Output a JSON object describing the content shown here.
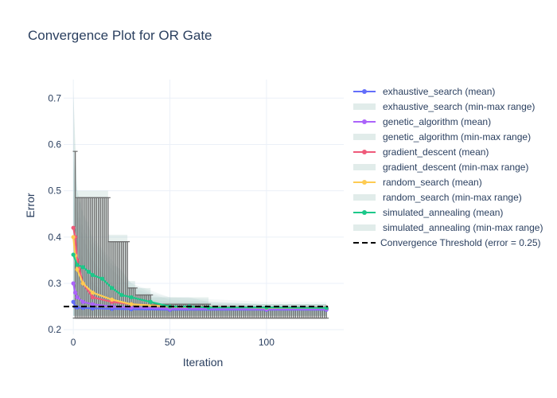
{
  "chart_data": {
    "type": "line",
    "title": "Convergence Plot for OR Gate",
    "xlabel": "Iteration",
    "ylabel": "Error",
    "xlim": [
      -5,
      140
    ],
    "ylim": [
      0.19,
      0.74
    ],
    "x_ticks": [
      0,
      50,
      100
    ],
    "y_ticks": [
      0.2,
      0.3,
      0.4,
      0.5,
      0.6,
      0.7
    ],
    "x_tick_labels": [
      "0",
      "50",
      "100"
    ],
    "y_tick_labels": [
      "0.2",
      "0.3",
      "0.4",
      "0.5",
      "0.6",
      "0.7"
    ],
    "grid": true,
    "legend_position": "right",
    "threshold": {
      "name": "Convergence Threshold (error = 0.25)",
      "value": 0.25,
      "color": "#000000",
      "dash": "dashed"
    },
    "band_color": "rgba(120,170,160,0.18)",
    "errorbar_color": "#6e6e6e",
    "series": [
      {
        "name": "exhaustive_search (mean)",
        "band_name": "exhaustive_search (min-max range)",
        "color": "#636efa",
        "x": [
          0,
          1,
          2,
          5,
          10,
          20,
          30,
          50,
          100,
          131
        ],
        "mean": [
          0.26,
          0.25,
          0.248,
          0.247,
          0.246,
          0.245,
          0.244,
          0.243,
          0.243,
          0.243
        ],
        "min": [
          0.23,
          0.23,
          0.23,
          0.23,
          0.23,
          0.23,
          0.23,
          0.23,
          0.23,
          0.23
        ],
        "max": [
          0.5,
          0.45,
          0.4,
          0.35,
          0.3,
          0.27,
          0.26,
          0.255,
          0.25,
          0.25
        ]
      },
      {
        "name": "genetic_algorithm (mean)",
        "band_name": "genetic_algorithm (min-max range)",
        "color": "#ab63fa",
        "x": [
          0,
          1,
          2,
          5,
          10,
          20,
          30,
          50,
          100,
          131
        ],
        "mean": [
          0.3,
          0.28,
          0.27,
          0.26,
          0.255,
          0.25,
          0.248,
          0.245,
          0.244,
          0.244
        ],
        "min": [
          0.23,
          0.23,
          0.23,
          0.23,
          0.23,
          0.23,
          0.23,
          0.23,
          0.23,
          0.23
        ],
        "max": [
          0.55,
          0.5,
          0.45,
          0.4,
          0.35,
          0.3,
          0.27,
          0.26,
          0.255,
          0.255
        ]
      },
      {
        "name": "gradient_descent (mean)",
        "band_name": "gradient_descent (min-max range)",
        "color": "#ef5a7a",
        "x": [
          0,
          1,
          2,
          5,
          10,
          20,
          30,
          50,
          100,
          131
        ],
        "mean": [
          0.42,
          0.4,
          0.35,
          0.3,
          0.27,
          0.26,
          0.255,
          0.25,
          0.248,
          0.248
        ],
        "min": [
          0.23,
          0.23,
          0.23,
          0.23,
          0.23,
          0.23,
          0.23,
          0.23,
          0.23,
          0.23
        ],
        "max": [
          0.72,
          0.6,
          0.5,
          0.45,
          0.4,
          0.35,
          0.3,
          0.27,
          0.26,
          0.26
        ]
      },
      {
        "name": "random_search (mean)",
        "band_name": "random_search (min-max range)",
        "color": "#fecb52",
        "x": [
          0,
          1,
          2,
          5,
          10,
          20,
          30,
          50,
          100,
          131
        ],
        "mean": [
          0.4,
          0.36,
          0.33,
          0.3,
          0.28,
          0.265,
          0.255,
          0.25,
          0.247,
          0.247
        ],
        "min": [
          0.23,
          0.23,
          0.23,
          0.23,
          0.23,
          0.23,
          0.23,
          0.23,
          0.23,
          0.23
        ],
        "max": [
          0.6,
          0.52,
          0.46,
          0.42,
          0.38,
          0.33,
          0.29,
          0.265,
          0.255,
          0.255
        ]
      },
      {
        "name": "simulated_annealing (mean)",
        "band_name": "simulated_annealing (min-max range)",
        "color": "#1cc88a",
        "x": [
          0,
          2,
          5,
          8,
          10,
          15,
          20,
          25,
          30,
          40,
          50,
          60,
          70,
          100,
          131
        ],
        "mean": [
          0.362,
          0.34,
          0.335,
          0.325,
          0.318,
          0.31,
          0.29,
          0.275,
          0.27,
          0.26,
          0.25,
          0.25,
          0.248,
          0.248,
          0.247
        ],
        "min": [
          0.23,
          0.23,
          0.23,
          0.23,
          0.23,
          0.23,
          0.23,
          0.23,
          0.23,
          0.23,
          0.23,
          0.23,
          0.23,
          0.23,
          0.23
        ],
        "max": [
          0.57,
          0.5,
          0.45,
          0.43,
          0.39,
          0.37,
          0.34,
          0.33,
          0.3,
          0.28,
          0.27,
          0.27,
          0.26,
          0.255,
          0.255
        ]
      }
    ],
    "band_outline": {
      "x": [
        0,
        1,
        2,
        5,
        5,
        18,
        18,
        28,
        28,
        32,
        32,
        40,
        40,
        70,
        70,
        131
      ],
      "max": [
        0.72,
        0.6,
        0.5,
        0.5,
        0.5,
        0.5,
        0.405,
        0.405,
        0.305,
        0.305,
        0.29,
        0.29,
        0.27,
        0.27,
        0.255,
        0.255
      ],
      "min": [
        0.23,
        0.23,
        0.23,
        0.23,
        0.23,
        0.23,
        0.23,
        0.23,
        0.23,
        0.23,
        0.23,
        0.23,
        0.23,
        0.23,
        0.23,
        0.23
      ]
    },
    "errorbars": {
      "x_start": 1,
      "x_end": 131,
      "step": 1,
      "lower": 0.225
    }
  }
}
